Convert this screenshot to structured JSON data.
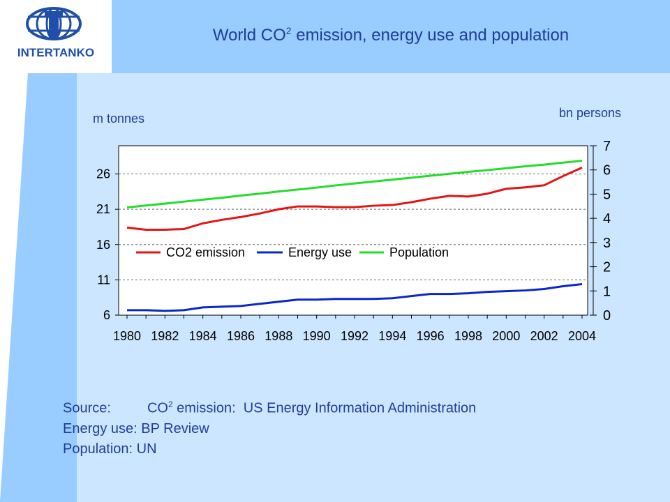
{
  "header": {
    "brand": "INTERTANKO",
    "title_pre": "World CO",
    "title_sup": "2",
    "title_post": " emission, energy use and population"
  },
  "left_axis_unit": "m tonnes",
  "right_axis_unit": "bn persons",
  "source": {
    "label": "Source:",
    "co2_pre": "CO",
    "co2_sup": "2",
    "co2_post": " emission:",
    "co2_value": "US Energy Information Administration",
    "energy": "Energy use: BP Review",
    "population": "Population:  UN"
  },
  "colors": {
    "header_band": "#99ccff",
    "panel": "#cce6ff",
    "co2": "#e31414",
    "energy": "#0a28c8",
    "population": "#22dd2a",
    "title_text": "#1f3d99"
  },
  "chart_data": {
    "type": "line",
    "x": [
      1980,
      1981,
      1982,
      1983,
      1984,
      1985,
      1986,
      1987,
      1988,
      1989,
      1990,
      1991,
      1992,
      1993,
      1994,
      1995,
      1996,
      1997,
      1998,
      1999,
      2000,
      2001,
      2002,
      2003,
      2004
    ],
    "x_tick_labels": [
      "1980",
      "1982",
      "1984",
      "1986",
      "1988",
      "1990",
      "1992",
      "1994",
      "1996",
      "1998",
      "2000",
      "2002",
      "2004"
    ],
    "left_axis": {
      "ylim": [
        6,
        30
      ],
      "ticks": [
        6,
        11,
        16,
        21,
        26
      ],
      "label": "m tonnes"
    },
    "right_axis": {
      "ylim": [
        0,
        7
      ],
      "ticks": [
        0,
        1,
        2,
        3,
        4,
        5,
        6,
        7
      ],
      "label": "bn persons"
    },
    "grid": true,
    "legend_position": "center",
    "series": [
      {
        "name": "CO2 emission",
        "axis": "left",
        "color": "#e31414",
        "values": [
          18.4,
          18.1,
          18.1,
          18.2,
          19.0,
          19.5,
          19.9,
          20.4,
          21.0,
          21.4,
          21.4,
          21.3,
          21.3,
          21.5,
          21.6,
          22.0,
          22.5,
          22.9,
          22.8,
          23.2,
          23.9,
          24.1,
          24.4,
          25.7,
          26.9
        ]
      },
      {
        "name": "Energy use",
        "axis": "left",
        "color": "#0a28c8",
        "values": [
          6.7,
          6.7,
          6.6,
          6.7,
          7.1,
          7.2,
          7.3,
          7.6,
          7.9,
          8.2,
          8.2,
          8.3,
          8.3,
          8.3,
          8.4,
          8.7,
          9.0,
          9.0,
          9.1,
          9.3,
          9.4,
          9.5,
          9.7,
          10.1,
          10.4
        ]
      },
      {
        "name": "Population",
        "axis": "right",
        "color": "#22dd2a",
        "values": [
          4.45,
          4.53,
          4.61,
          4.69,
          4.77,
          4.85,
          4.94,
          5.02,
          5.11,
          5.19,
          5.27,
          5.36,
          5.44,
          5.52,
          5.6,
          5.68,
          5.76,
          5.84,
          5.92,
          5.99,
          6.07,
          6.15,
          6.22,
          6.3,
          6.38
        ]
      }
    ]
  }
}
